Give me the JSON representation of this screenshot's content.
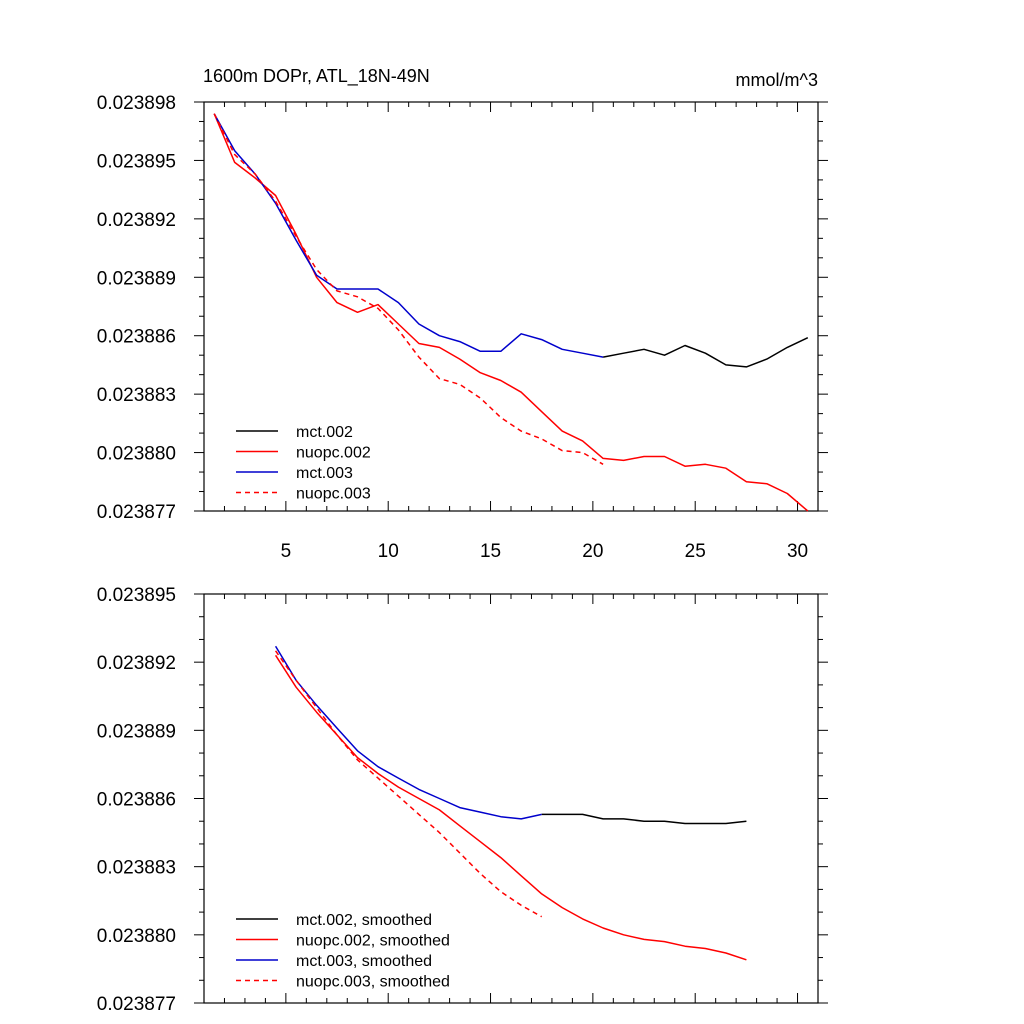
{
  "figure": {
    "title_left": "1600m DOPr, ATL_18N-49N",
    "title_right": "mmol/m^3"
  },
  "colors": {
    "mct002": "#000000",
    "nuopc": "#ff0000",
    "mct003": "#0000cc"
  },
  "chart_data": [
    {
      "type": "line",
      "title": "1600m DOPr, ATL_18N-49N",
      "units": "mmol/m^3",
      "xlim": [
        1,
        31
      ],
      "ylim": [
        0.023877,
        0.023898
      ],
      "x_ticks": [
        5,
        10,
        15,
        20,
        25,
        30
      ],
      "y_ticks": [
        0.023877,
        0.02388,
        0.023883,
        0.023886,
        0.023889,
        0.023892,
        0.023895,
        0.023898
      ],
      "y_tick_labels": [
        "0.023877",
        "0.023880",
        "0.023883",
        "0.023886",
        "0.023889",
        "0.023892",
        "0.023895",
        "0.023898"
      ],
      "legend_position": "bottom-left",
      "series": [
        {
          "name": "mct.002",
          "color": "#000000",
          "dash": "solid",
          "points": [
            [
              20.5,
              0.0238849
            ],
            [
              21.5,
              0.0238851
            ],
            [
              22.5,
              0.0238853
            ],
            [
              23.5,
              0.023885
            ],
            [
              24.5,
              0.0238855
            ],
            [
              25.5,
              0.0238851
            ],
            [
              26.5,
              0.0238845
            ],
            [
              27.5,
              0.0238844
            ],
            [
              28.5,
              0.0238848
            ],
            [
              29.5,
              0.0238854
            ],
            [
              30.5,
              0.0238859
            ]
          ]
        },
        {
          "name": "nuopc.002",
          "color": "#ff0000",
          "dash": "solid",
          "points": [
            [
              1.5,
              0.0238974
            ],
            [
              2.5,
              0.0238949
            ],
            [
              3.5,
              0.0238941
            ],
            [
              4.5,
              0.0238932
            ],
            [
              5.5,
              0.0238912
            ],
            [
              6.5,
              0.023889
            ],
            [
              7.5,
              0.0238877
            ],
            [
              8.5,
              0.0238872
            ],
            [
              9.5,
              0.0238876
            ],
            [
              10.5,
              0.0238866
            ],
            [
              11.5,
              0.0238856
            ],
            [
              12.5,
              0.0238854
            ],
            [
              13.5,
              0.0238848
            ],
            [
              14.5,
              0.0238841
            ],
            [
              15.5,
              0.0238837
            ],
            [
              16.5,
              0.0238831
            ],
            [
              17.5,
              0.0238821
            ],
            [
              18.5,
              0.0238811
            ],
            [
              19.5,
              0.0238806
            ],
            [
              20.5,
              0.0238797
            ],
            [
              21.5,
              0.0238796
            ],
            [
              22.5,
              0.0238798
            ],
            [
              23.5,
              0.0238798
            ],
            [
              24.5,
              0.0238793
            ],
            [
              25.5,
              0.0238794
            ],
            [
              26.5,
              0.0238792
            ],
            [
              27.5,
              0.0238785
            ],
            [
              28.5,
              0.0238784
            ],
            [
              29.5,
              0.0238779
            ],
            [
              30.5,
              0.023877
            ]
          ]
        },
        {
          "name": "mct.003",
          "color": "#0000cc",
          "dash": "solid",
          "points": [
            [
              1.5,
              0.0238974
            ],
            [
              2.5,
              0.0238955
            ],
            [
              3.5,
              0.0238943
            ],
            [
              4.5,
              0.0238928
            ],
            [
              5.5,
              0.0238909
            ],
            [
              6.5,
              0.0238891
            ],
            [
              7.5,
              0.0238884
            ],
            [
              8.5,
              0.0238884
            ],
            [
              9.5,
              0.0238884
            ],
            [
              10.5,
              0.0238877
            ],
            [
              11.5,
              0.0238866
            ],
            [
              12.5,
              0.023886
            ],
            [
              13.5,
              0.0238857
            ],
            [
              14.5,
              0.0238852
            ],
            [
              15.5,
              0.0238852
            ],
            [
              16.5,
              0.0238861
            ],
            [
              17.5,
              0.0238858
            ],
            [
              18.5,
              0.0238853
            ],
            [
              19.5,
              0.0238851
            ],
            [
              20.5,
              0.0238849
            ]
          ]
        },
        {
          "name": "nuopc.003",
          "color": "#ff0000",
          "dash": "dashed",
          "points": [
            [
              1.5,
              0.0238974
            ],
            [
              2.5,
              0.0238953
            ],
            [
              3.5,
              0.0238943
            ],
            [
              4.5,
              0.0238929
            ],
            [
              5.5,
              0.0238911
            ],
            [
              6.5,
              0.0238894
            ],
            [
              7.5,
              0.0238883
            ],
            [
              8.5,
              0.023888
            ],
            [
              9.5,
              0.0238874
            ],
            [
              10.5,
              0.0238863
            ],
            [
              11.5,
              0.0238849
            ],
            [
              12.5,
              0.0238838
            ],
            [
              13.5,
              0.0238835
            ],
            [
              14.5,
              0.0238828
            ],
            [
              15.5,
              0.0238818
            ],
            [
              16.5,
              0.0238811
            ],
            [
              17.5,
              0.0238807
            ],
            [
              18.5,
              0.0238801
            ],
            [
              19.5,
              0.02388
            ],
            [
              20.5,
              0.0238794
            ]
          ]
        }
      ]
    },
    {
      "type": "line",
      "xlim": [
        1,
        31
      ],
      "ylim": [
        0.023877,
        0.023895
      ],
      "x_ticks": [
        5,
        10,
        15,
        20,
        25,
        30
      ],
      "y_ticks": [
        0.023877,
        0.02388,
        0.023883,
        0.023886,
        0.023889,
        0.023892,
        0.023895
      ],
      "y_tick_labels": [
        "0.023877",
        "0.023880",
        "0.023883",
        "0.023886",
        "0.023889",
        "0.023892",
        "0.023895"
      ],
      "legend_position": "bottom-left",
      "series": [
        {
          "name": "mct.002, smoothed",
          "color": "#000000",
          "dash": "solid",
          "points": [
            [
              17.5,
              0.0238853
            ],
            [
              18.5,
              0.0238853
            ],
            [
              19.5,
              0.0238853
            ],
            [
              20.5,
              0.0238851
            ],
            [
              21.5,
              0.0238851
            ],
            [
              22.5,
              0.023885
            ],
            [
              23.5,
              0.023885
            ],
            [
              24.5,
              0.0238849
            ],
            [
              25.5,
              0.0238849
            ],
            [
              26.5,
              0.0238849
            ],
            [
              27.5,
              0.023885
            ]
          ]
        },
        {
          "name": "nuopc.002, smoothed",
          "color": "#ff0000",
          "dash": "solid",
          "points": [
            [
              4.5,
              0.0238923
            ],
            [
              5.5,
              0.0238909
            ],
            [
              6.5,
              0.0238898
            ],
            [
              7.5,
              0.0238888
            ],
            [
              8.5,
              0.0238878
            ],
            [
              9.5,
              0.0238871
            ],
            [
              10.5,
              0.0238865
            ],
            [
              11.5,
              0.023886
            ],
            [
              12.5,
              0.0238855
            ],
            [
              13.5,
              0.0238848
            ],
            [
              14.5,
              0.0238841
            ],
            [
              15.5,
              0.0238834
            ],
            [
              16.5,
              0.0238826
            ],
            [
              17.5,
              0.0238818
            ],
            [
              18.5,
              0.0238812
            ],
            [
              19.5,
              0.0238807
            ],
            [
              20.5,
              0.0238803
            ],
            [
              21.5,
              0.02388
            ],
            [
              22.5,
              0.0238798
            ],
            [
              23.5,
              0.0238797
            ],
            [
              24.5,
              0.0238795
            ],
            [
              25.5,
              0.0238794
            ],
            [
              26.5,
              0.0238792
            ],
            [
              27.5,
              0.0238789
            ]
          ]
        },
        {
          "name": "mct.003, smoothed",
          "color": "#0000cc",
          "dash": "solid",
          "points": [
            [
              4.5,
              0.0238927
            ],
            [
              5.5,
              0.0238912
            ],
            [
              6.5,
              0.0238901
            ],
            [
              7.5,
              0.0238891
            ],
            [
              8.5,
              0.0238881
            ],
            [
              9.5,
              0.0238874
            ],
            [
              10.5,
              0.0238869
            ],
            [
              11.5,
              0.0238864
            ],
            [
              12.5,
              0.023886
            ],
            [
              13.5,
              0.0238856
            ],
            [
              14.5,
              0.0238854
            ],
            [
              15.5,
              0.0238852
            ],
            [
              16.5,
              0.0238851
            ],
            [
              17.5,
              0.0238853
            ]
          ]
        },
        {
          "name": "nuopc.003, smoothed",
          "color": "#ff0000",
          "dash": "dashed",
          "points": [
            [
              4.5,
              0.0238925
            ],
            [
              5.5,
              0.0238912
            ],
            [
              6.5,
              0.02389
            ],
            [
              7.5,
              0.0238888
            ],
            [
              8.5,
              0.0238877
            ],
            [
              9.5,
              0.0238869
            ],
            [
              10.5,
              0.0238861
            ],
            [
              11.5,
              0.0238853
            ],
            [
              12.5,
              0.0238845
            ],
            [
              13.5,
              0.0238836
            ],
            [
              14.5,
              0.0238827
            ],
            [
              15.5,
              0.0238819
            ],
            [
              16.5,
              0.0238813
            ],
            [
              17.5,
              0.0238808
            ]
          ]
        }
      ]
    }
  ]
}
